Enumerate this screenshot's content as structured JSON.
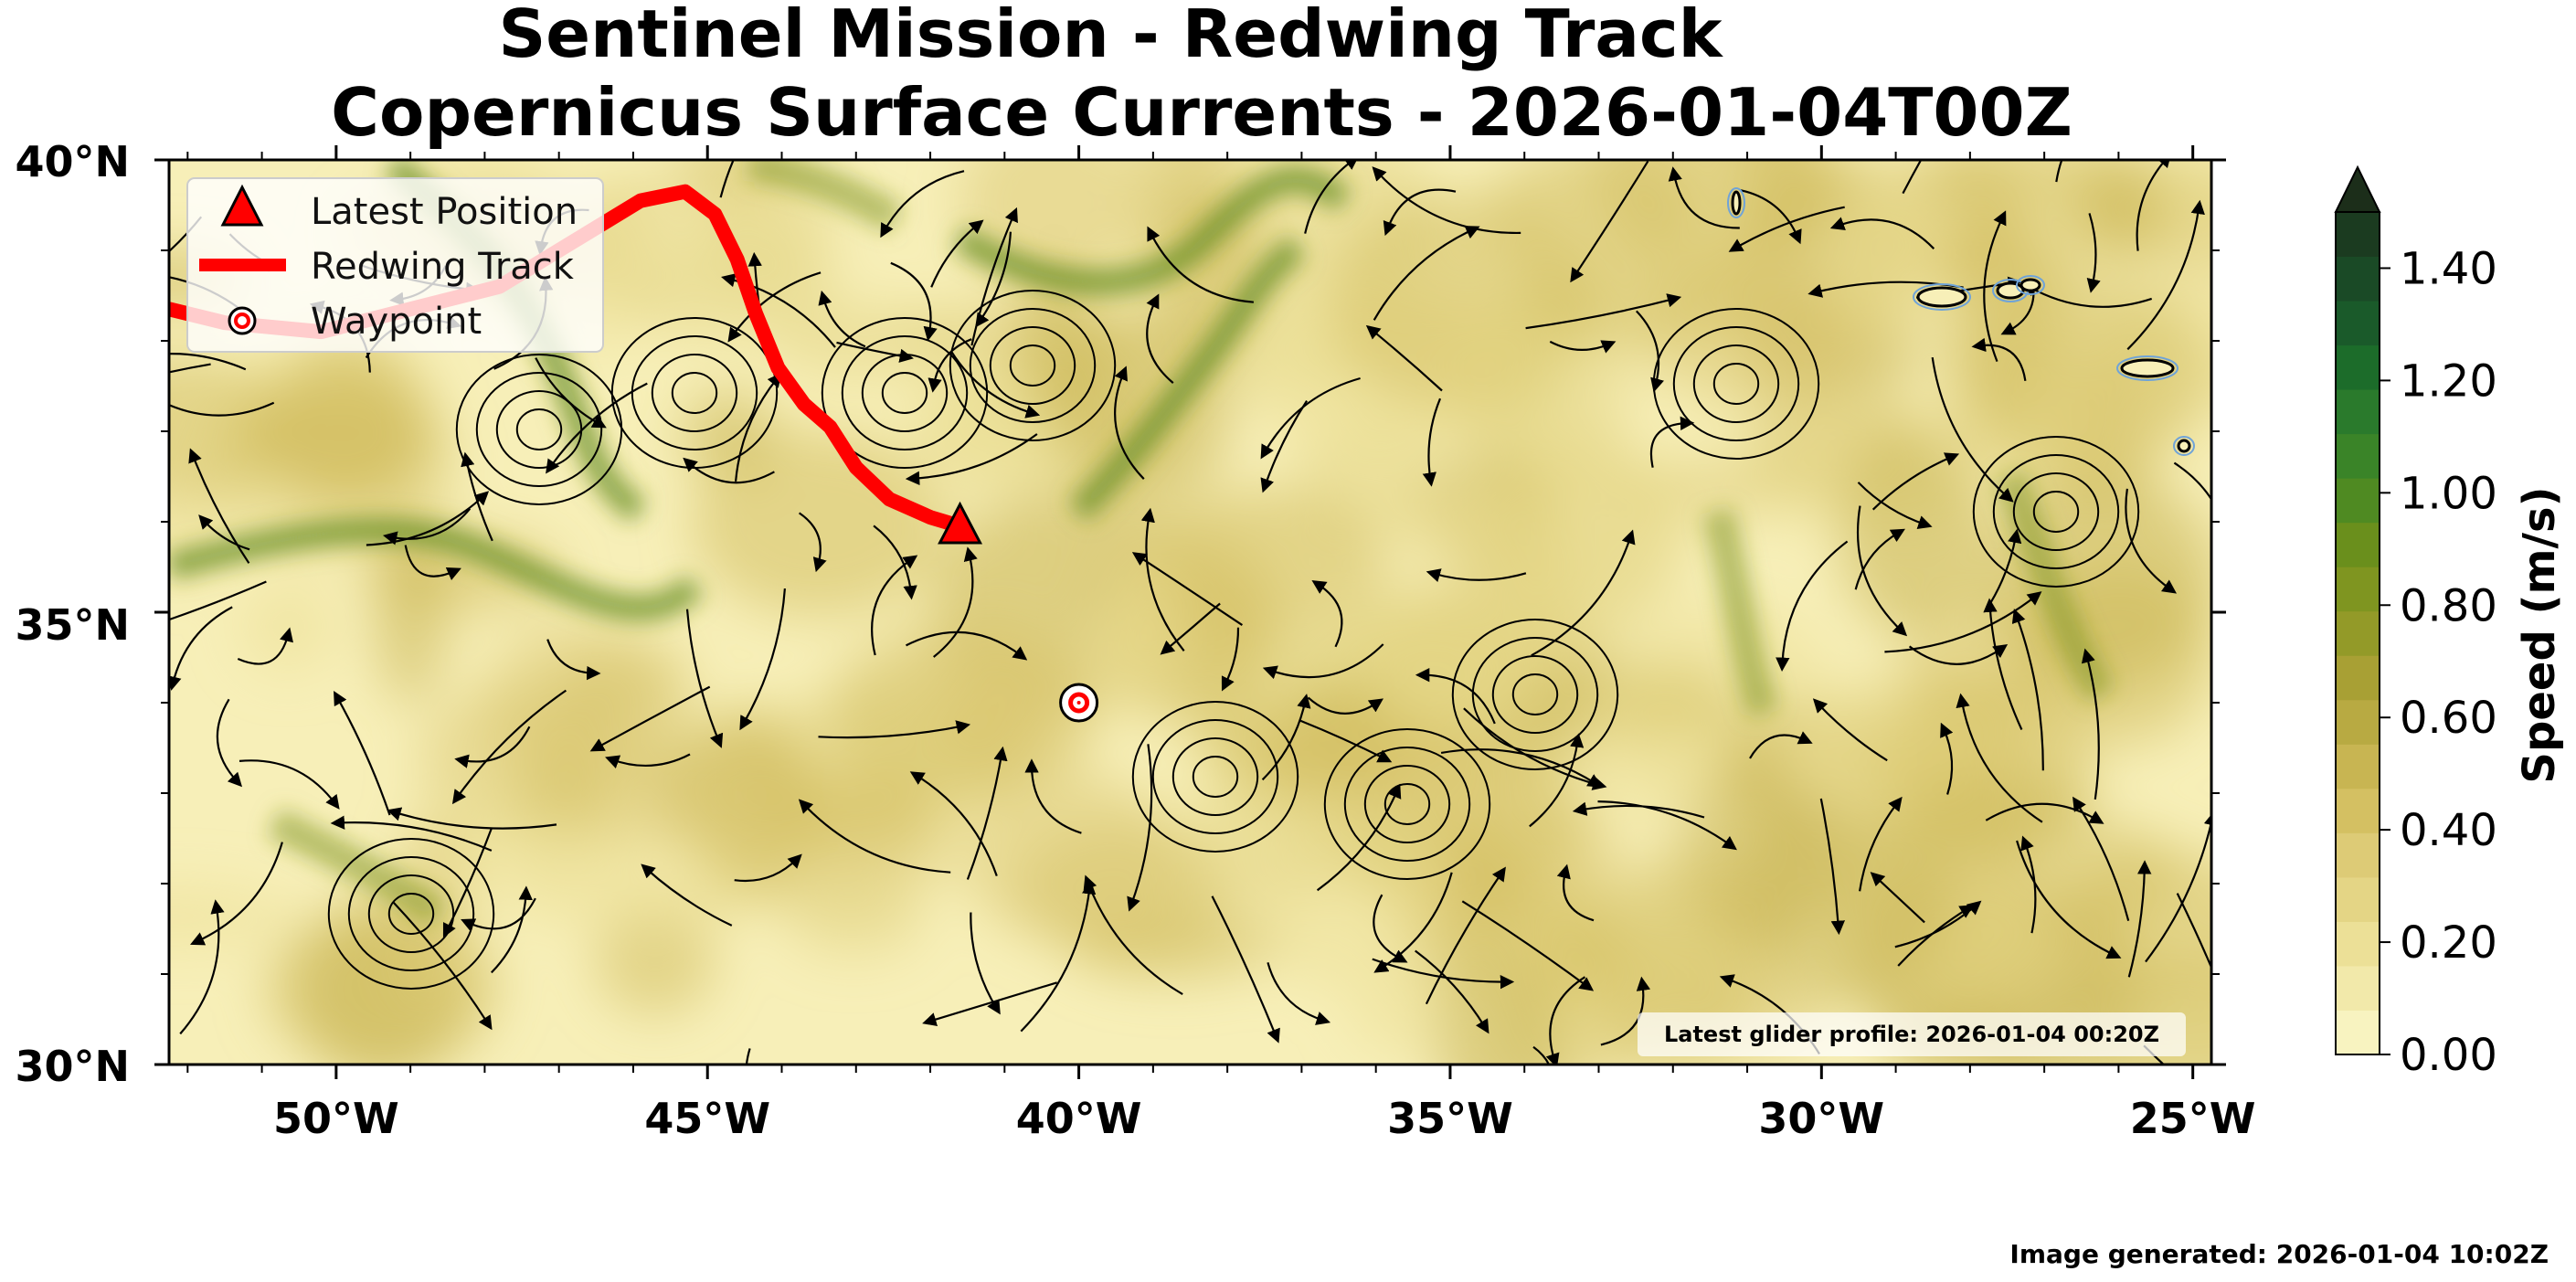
{
  "title": {
    "line1": "Sentinel Mission - Redwing Track",
    "line2": "Copernicus Surface Currents - 2026-01-04T00Z"
  },
  "map": {
    "lon_range": [
      -52.25,
      -24.75
    ],
    "lat_range": [
      30,
      40
    ],
    "lat_ticks": [
      "40°N",
      "35°N",
      "30°N"
    ],
    "lon_ticks": [
      "50°W",
      "45°W",
      "40°W",
      "35°W",
      "30°W",
      "25°W"
    ]
  },
  "legend": {
    "latest_position": "Latest Position",
    "track": "Redwing Track",
    "waypoint": "Waypoint"
  },
  "colorbar": {
    "label": "Speed (m/s)",
    "ticks": [
      "0.00",
      "0.20",
      "0.40",
      "0.60",
      "0.80",
      "1.00",
      "1.20",
      "1.40"
    ],
    "range": [
      0,
      1.5
    ],
    "extend": "max",
    "colors": [
      "#f8f3c0",
      "#f2e9aa",
      "#ece097",
      "#e4d585",
      "#ddcb76",
      "#d4c062",
      "#c8b552",
      "#b8aa42",
      "#a8a034",
      "#939a28",
      "#7f9520",
      "#6a8f1c",
      "#4f8a22",
      "#3a8428",
      "#2a7a2c",
      "#1c6c2a",
      "#1a5a2a",
      "#1a4a26",
      "#1b3b20",
      "#1c2e1a"
    ]
  },
  "track_data": {
    "track": [
      [
        -52.25,
        38.35
      ],
      [
        -51.5,
        38.2
      ],
      [
        -50.2,
        38.1
      ],
      [
        -49.0,
        38.35
      ],
      [
        -47.8,
        38.6
      ],
      [
        -46.8,
        39.1
      ],
      [
        -45.9,
        39.55
      ],
      [
        -45.3,
        39.65
      ],
      [
        -44.9,
        39.4
      ],
      [
        -44.6,
        38.9
      ],
      [
        -44.35,
        38.3
      ],
      [
        -44.05,
        37.7
      ],
      [
        -43.7,
        37.3
      ],
      [
        -43.35,
        37.05
      ],
      [
        -43.0,
        36.6
      ],
      [
        -42.55,
        36.25
      ],
      [
        -42.0,
        36.05
      ],
      [
        -41.6,
        35.95
      ]
    ],
    "latest_position": [
      -41.6,
      35.95
    ],
    "waypoint": [
      -40.0,
      34.0
    ]
  },
  "annotation": "Latest glider profile: 2026-01-04 00:20Z",
  "footer": "Image generated: 2026-01-04 10:02Z",
  "colors": {
    "track": "#ff0000",
    "marker_edge": "#000000"
  }
}
